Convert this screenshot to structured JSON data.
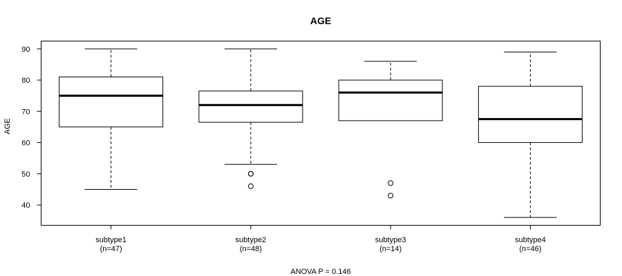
{
  "chart_data": {
    "type": "boxplot",
    "title": "AGE",
    "ylabel": "AGE",
    "xlabel": "",
    "footer": "ANOVA P = 0.146",
    "ylim": [
      33.5,
      92.5
    ],
    "yticks": [
      40,
      50,
      60,
      70,
      80,
      90
    ],
    "grid": false,
    "groups": [
      {
        "name": "subtype1",
        "n_label": "(n=47)",
        "whisker_low": 45,
        "q1": 65,
        "median": 75,
        "q3": 81,
        "whisker_high": 90,
        "outliers": []
      },
      {
        "name": "subtype2",
        "n_label": "(n=48)",
        "whisker_low": 53,
        "q1": 66.5,
        "median": 72,
        "q3": 76.5,
        "whisker_high": 90,
        "outliers": [
          50,
          50,
          46
        ]
      },
      {
        "name": "subtype3",
        "n_label": "(n=14)",
        "whisker_low": 67,
        "q1": 67,
        "median": 76,
        "q3": 80,
        "whisker_high": 86,
        "outliers": [
          47,
          43
        ]
      },
      {
        "name": "subtype4",
        "n_label": "(n=46)",
        "whisker_low": 36,
        "q1": 60,
        "median": 67.5,
        "q3": 78,
        "whisker_high": 89,
        "outliers": []
      }
    ]
  }
}
